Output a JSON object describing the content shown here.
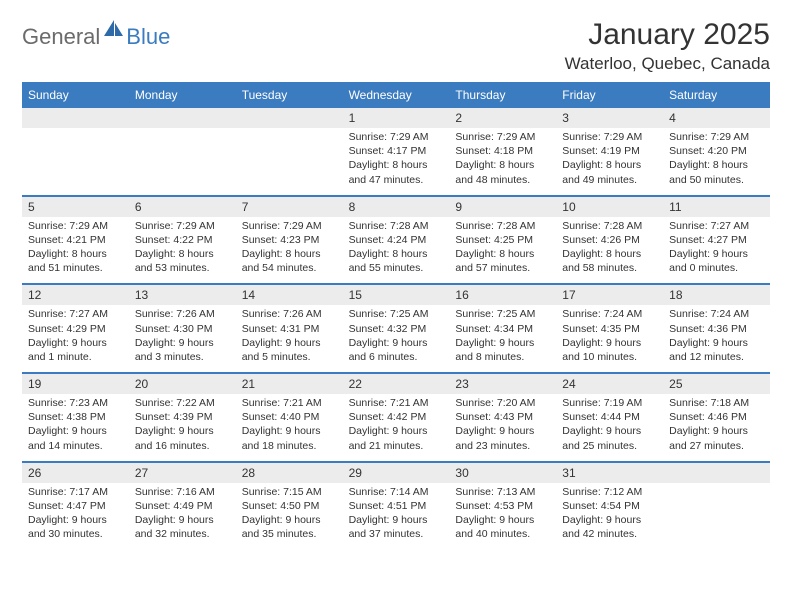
{
  "logo": {
    "text1": "General",
    "text2": "Blue"
  },
  "title": "January 2025",
  "location": "Waterloo, Quebec, Canada",
  "colors": {
    "accent": "#3b7bbf",
    "header_text": "#ffffff",
    "daynum_bg": "#ececec",
    "text": "#333333",
    "logo_gray": "#6b6b6b"
  },
  "day_names": [
    "Sunday",
    "Monday",
    "Tuesday",
    "Wednesday",
    "Thursday",
    "Friday",
    "Saturday"
  ],
  "weeks": [
    [
      {
        "n": "",
        "sr": "",
        "ss": "",
        "dl1": "",
        "dl2": ""
      },
      {
        "n": "",
        "sr": "",
        "ss": "",
        "dl1": "",
        "dl2": ""
      },
      {
        "n": "",
        "sr": "",
        "ss": "",
        "dl1": "",
        "dl2": ""
      },
      {
        "n": "1",
        "sr": "Sunrise: 7:29 AM",
        "ss": "Sunset: 4:17 PM",
        "dl1": "Daylight: 8 hours",
        "dl2": "and 47 minutes."
      },
      {
        "n": "2",
        "sr": "Sunrise: 7:29 AM",
        "ss": "Sunset: 4:18 PM",
        "dl1": "Daylight: 8 hours",
        "dl2": "and 48 minutes."
      },
      {
        "n": "3",
        "sr": "Sunrise: 7:29 AM",
        "ss": "Sunset: 4:19 PM",
        "dl1": "Daylight: 8 hours",
        "dl2": "and 49 minutes."
      },
      {
        "n": "4",
        "sr": "Sunrise: 7:29 AM",
        "ss": "Sunset: 4:20 PM",
        "dl1": "Daylight: 8 hours",
        "dl2": "and 50 minutes."
      }
    ],
    [
      {
        "n": "5",
        "sr": "Sunrise: 7:29 AM",
        "ss": "Sunset: 4:21 PM",
        "dl1": "Daylight: 8 hours",
        "dl2": "and 51 minutes."
      },
      {
        "n": "6",
        "sr": "Sunrise: 7:29 AM",
        "ss": "Sunset: 4:22 PM",
        "dl1": "Daylight: 8 hours",
        "dl2": "and 53 minutes."
      },
      {
        "n": "7",
        "sr": "Sunrise: 7:29 AM",
        "ss": "Sunset: 4:23 PM",
        "dl1": "Daylight: 8 hours",
        "dl2": "and 54 minutes."
      },
      {
        "n": "8",
        "sr": "Sunrise: 7:28 AM",
        "ss": "Sunset: 4:24 PM",
        "dl1": "Daylight: 8 hours",
        "dl2": "and 55 minutes."
      },
      {
        "n": "9",
        "sr": "Sunrise: 7:28 AM",
        "ss": "Sunset: 4:25 PM",
        "dl1": "Daylight: 8 hours",
        "dl2": "and 57 minutes."
      },
      {
        "n": "10",
        "sr": "Sunrise: 7:28 AM",
        "ss": "Sunset: 4:26 PM",
        "dl1": "Daylight: 8 hours",
        "dl2": "and 58 minutes."
      },
      {
        "n": "11",
        "sr": "Sunrise: 7:27 AM",
        "ss": "Sunset: 4:27 PM",
        "dl1": "Daylight: 9 hours",
        "dl2": "and 0 minutes."
      }
    ],
    [
      {
        "n": "12",
        "sr": "Sunrise: 7:27 AM",
        "ss": "Sunset: 4:29 PM",
        "dl1": "Daylight: 9 hours",
        "dl2": "and 1 minute."
      },
      {
        "n": "13",
        "sr": "Sunrise: 7:26 AM",
        "ss": "Sunset: 4:30 PM",
        "dl1": "Daylight: 9 hours",
        "dl2": "and 3 minutes."
      },
      {
        "n": "14",
        "sr": "Sunrise: 7:26 AM",
        "ss": "Sunset: 4:31 PM",
        "dl1": "Daylight: 9 hours",
        "dl2": "and 5 minutes."
      },
      {
        "n": "15",
        "sr": "Sunrise: 7:25 AM",
        "ss": "Sunset: 4:32 PM",
        "dl1": "Daylight: 9 hours",
        "dl2": "and 6 minutes."
      },
      {
        "n": "16",
        "sr": "Sunrise: 7:25 AM",
        "ss": "Sunset: 4:34 PM",
        "dl1": "Daylight: 9 hours",
        "dl2": "and 8 minutes."
      },
      {
        "n": "17",
        "sr": "Sunrise: 7:24 AM",
        "ss": "Sunset: 4:35 PM",
        "dl1": "Daylight: 9 hours",
        "dl2": "and 10 minutes."
      },
      {
        "n": "18",
        "sr": "Sunrise: 7:24 AM",
        "ss": "Sunset: 4:36 PM",
        "dl1": "Daylight: 9 hours",
        "dl2": "and 12 minutes."
      }
    ],
    [
      {
        "n": "19",
        "sr": "Sunrise: 7:23 AM",
        "ss": "Sunset: 4:38 PM",
        "dl1": "Daylight: 9 hours",
        "dl2": "and 14 minutes."
      },
      {
        "n": "20",
        "sr": "Sunrise: 7:22 AM",
        "ss": "Sunset: 4:39 PM",
        "dl1": "Daylight: 9 hours",
        "dl2": "and 16 minutes."
      },
      {
        "n": "21",
        "sr": "Sunrise: 7:21 AM",
        "ss": "Sunset: 4:40 PM",
        "dl1": "Daylight: 9 hours",
        "dl2": "and 18 minutes."
      },
      {
        "n": "22",
        "sr": "Sunrise: 7:21 AM",
        "ss": "Sunset: 4:42 PM",
        "dl1": "Daylight: 9 hours",
        "dl2": "and 21 minutes."
      },
      {
        "n": "23",
        "sr": "Sunrise: 7:20 AM",
        "ss": "Sunset: 4:43 PM",
        "dl1": "Daylight: 9 hours",
        "dl2": "and 23 minutes."
      },
      {
        "n": "24",
        "sr": "Sunrise: 7:19 AM",
        "ss": "Sunset: 4:44 PM",
        "dl1": "Daylight: 9 hours",
        "dl2": "and 25 minutes."
      },
      {
        "n": "25",
        "sr": "Sunrise: 7:18 AM",
        "ss": "Sunset: 4:46 PM",
        "dl1": "Daylight: 9 hours",
        "dl2": "and 27 minutes."
      }
    ],
    [
      {
        "n": "26",
        "sr": "Sunrise: 7:17 AM",
        "ss": "Sunset: 4:47 PM",
        "dl1": "Daylight: 9 hours",
        "dl2": "and 30 minutes."
      },
      {
        "n": "27",
        "sr": "Sunrise: 7:16 AM",
        "ss": "Sunset: 4:49 PM",
        "dl1": "Daylight: 9 hours",
        "dl2": "and 32 minutes."
      },
      {
        "n": "28",
        "sr": "Sunrise: 7:15 AM",
        "ss": "Sunset: 4:50 PM",
        "dl1": "Daylight: 9 hours",
        "dl2": "and 35 minutes."
      },
      {
        "n": "29",
        "sr": "Sunrise: 7:14 AM",
        "ss": "Sunset: 4:51 PM",
        "dl1": "Daylight: 9 hours",
        "dl2": "and 37 minutes."
      },
      {
        "n": "30",
        "sr": "Sunrise: 7:13 AM",
        "ss": "Sunset: 4:53 PM",
        "dl1": "Daylight: 9 hours",
        "dl2": "and 40 minutes."
      },
      {
        "n": "31",
        "sr": "Sunrise: 7:12 AM",
        "ss": "Sunset: 4:54 PM",
        "dl1": "Daylight: 9 hours",
        "dl2": "and 42 minutes."
      },
      {
        "n": "",
        "sr": "",
        "ss": "",
        "dl1": "",
        "dl2": ""
      }
    ]
  ]
}
